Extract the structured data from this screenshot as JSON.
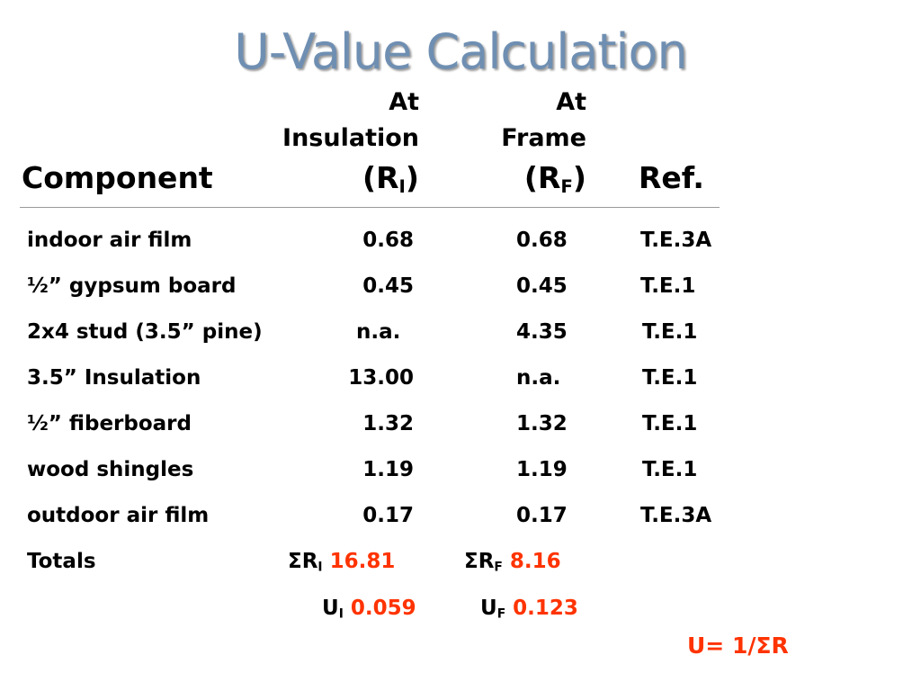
{
  "title": "U-Value Calculation",
  "headers": {
    "component": "Component",
    "insulation_line1": "At",
    "insulation_line2": "Insulation",
    "insulation_symbol_open": "(R",
    "insulation_symbol_sub": "I",
    "insulation_symbol_close": ")",
    "frame_line1": "At",
    "frame_line2": "Frame",
    "frame_symbol_open": "(R",
    "frame_symbol_sub": "F",
    "frame_symbol_close": ")",
    "ref": "Ref."
  },
  "rows": [
    {
      "component": "indoor air film",
      "insulation": "0.68",
      "frame": "0.68",
      "ref": "T.E.3A"
    },
    {
      "component": "½” gypsum board",
      "insulation": "0.45",
      "frame": "0.45",
      "ref": "T.E.1"
    },
    {
      "component": "2x4 stud (3.5” pine)",
      "insulation": "n.a.",
      "frame": "4.35",
      "ref": "T.E.1"
    },
    {
      "component": "3.5” Insulation",
      "insulation": "13.00",
      "frame": "n.a.",
      "ref": "T.E.1"
    },
    {
      "component": "½” fiberboard",
      "insulation": "1.32",
      "frame": "1.32",
      "ref": "T.E.1"
    },
    {
      "component": "wood shingles",
      "insulation": "1.19",
      "frame": "1.19",
      "ref": "T.E.1"
    },
    {
      "component": "outdoor air film",
      "insulation": "0.17",
      "frame": "0.17",
      "ref": "T.E.3A"
    }
  ],
  "totals": {
    "label": "Totals",
    "sum_i_symbol": "ΣR",
    "sum_i_sub": "I",
    "sum_i_value": "16.81",
    "sum_f_symbol": "ΣR",
    "sum_f_sub": "F",
    "sum_f_value": "8.16"
  },
  "u_values": {
    "u_i_symbol": "U",
    "u_i_sub": "I",
    "u_i_value": "0.059",
    "u_f_symbol": "U",
    "u_f_sub": "F",
    "u_f_value": "0.123"
  },
  "formula": "U= 1/ΣR",
  "colors": {
    "title": "#6f8fb2",
    "highlight": "#ff3300"
  }
}
